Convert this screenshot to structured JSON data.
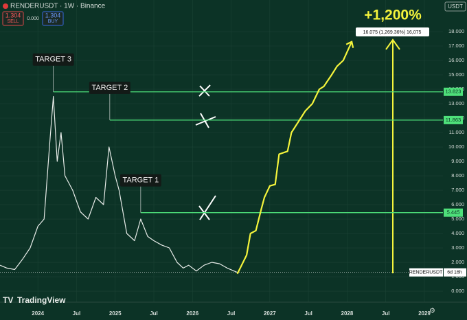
{
  "header": {
    "symbol": "RENDERUSDT · 1W · Binance",
    "sell_price": "1.304",
    "sell": "SELL",
    "spread": "0.000",
    "buy_price": "1.304",
    "buy": "BUY",
    "currency": "USDT",
    "brand": "TradingView"
  },
  "chart_data": {
    "type": "line",
    "xlim": [
      2023.51,
      2029.24
    ],
    "ylim": [
      -0.76,
      20.19
    ],
    "xticks": [
      2024,
      {
        "value": 2024.5,
        "label": "Jul"
      },
      2025,
      {
        "value": 2025.5,
        "label": "Jul"
      },
      2026,
      {
        "value": 2026.5,
        "label": "Jul"
      },
      2027,
      {
        "value": 2027.5,
        "label": "Jul"
      },
      2028,
      {
        "value": 2028.5,
        "label": "Jul"
      },
      2029
    ],
    "yticks": [
      {
        "value": 0,
        "label": "0.000"
      },
      {
        "value": 1,
        "label": "1.000"
      },
      {
        "value": 2,
        "label": "2.000"
      },
      {
        "value": 3,
        "label": "3.000"
      },
      {
        "value": 4,
        "label": "4.000"
      },
      {
        "value": 5,
        "label": "5.000"
      },
      {
        "value": 6,
        "label": "6.000"
      },
      {
        "value": 7,
        "label": "7.000"
      },
      {
        "value": 8,
        "label": "8.000"
      },
      {
        "value": 9,
        "label": "9.000"
      },
      {
        "value": 10,
        "label": "10.000"
      },
      {
        "value": 11,
        "label": "11.000"
      },
      {
        "value": 12,
        "label": "12.000"
      },
      {
        "value": 13,
        "label": "13.000"
      },
      {
        "value": 14,
        "label": "14.000"
      },
      {
        "value": 15,
        "label": "15.000"
      },
      {
        "value": 16,
        "label": "16.000"
      },
      {
        "value": 17,
        "label": "17.000"
      },
      {
        "value": 18,
        "label": "18.000"
      }
    ],
    "grid": true,
    "series": [
      {
        "name": "RENDERUSDT",
        "color": "#e8ece9",
        "x": [
          2023.51,
          2023.6,
          2023.7,
          2023.8,
          2023.9,
          2024.0,
          2024.08,
          2024.15,
          2024.2,
          2024.25,
          2024.3,
          2024.35,
          2024.45,
          2024.55,
          2024.65,
          2024.75,
          2024.85,
          2024.92,
          2025.0,
          2025.05,
          2025.1,
          2025.15,
          2025.25,
          2025.33,
          2025.42,
          2025.5,
          2025.6,
          2025.7,
          2025.8,
          2025.88,
          2025.95,
          2026.05,
          2026.15,
          2026.25,
          2026.35,
          2026.45,
          2026.58
        ],
        "values": [
          1.8,
          1.6,
          1.5,
          2.2,
          3.0,
          4.5,
          5.0,
          10.0,
          13.5,
          9.0,
          11.0,
          8.0,
          7.0,
          5.5,
          5.0,
          6.5,
          6.0,
          10.0,
          8.0,
          7.0,
          5.5,
          4.0,
          3.5,
          5.0,
          3.8,
          3.5,
          3.2,
          3.0,
          2.0,
          1.6,
          1.8,
          1.4,
          1.8,
          2.0,
          1.9,
          1.6,
          1.3
        ]
      },
      {
        "color": "#f4f43c",
        "x": [
          2026.58,
          2026.7,
          2026.75,
          2026.82,
          2026.89,
          2026.93,
          2027.0,
          2027.07,
          2027.12,
          2027.23,
          2027.28,
          2027.4,
          2027.46,
          2027.55,
          2027.64,
          2027.7,
          2027.8,
          2027.87,
          2027.95,
          2028.06
        ],
        "values": [
          1.2,
          2.5,
          4.0,
          4.2,
          5.7,
          6.5,
          7.3,
          7.4,
          9.5,
          9.7,
          11.0,
          12.0,
          12.5,
          13.0,
          14.0,
          14.2,
          15.0,
          15.6,
          16.0,
          17.3
        ]
      }
    ],
    "levels": [
      {
        "value": 13.823,
        "x": 2024.2
      },
      {
        "value": 11.863,
        "x": 2024.93
      },
      {
        "value": 5.445,
        "x": 2025.33
      }
    ],
    "last": 1.304,
    "last_name": "RENDERUSDT",
    "last_timer": "6d 16h",
    "annotations": [
      {
        "text": "TARGET 3",
        "x": 2024.2,
        "y": 13.823
      },
      {
        "text": "TARGET 2",
        "x": 2024.93,
        "y": 11.863
      },
      {
        "text": "TARGET 1",
        "x": 2025.33,
        "y": 5.445
      }
    ],
    "gain_label": "+1,200%",
    "measure_label": "16.075 (1,269.36%) 16,075"
  }
}
